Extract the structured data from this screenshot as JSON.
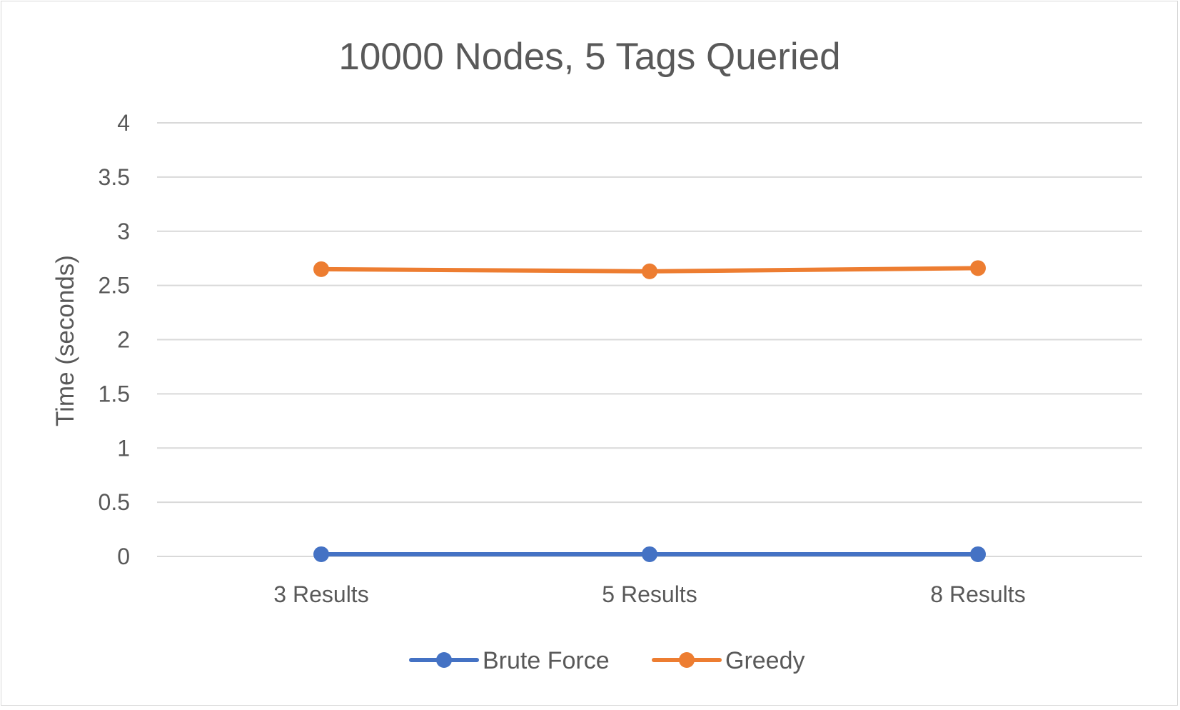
{
  "chart_data": {
    "type": "line",
    "title": "10000 Nodes, 5 Tags Queried",
    "xlabel": "",
    "ylabel": "Time (seconds)",
    "categories": [
      "3 Results",
      "5 Results",
      "8 Results"
    ],
    "ylim": [
      0,
      4
    ],
    "yticks": [
      "0",
      "0.5",
      "1",
      "1.5",
      "2",
      "2.5",
      "3",
      "3.5",
      "4"
    ],
    "ytick_values": [
      0,
      0.5,
      1,
      1.5,
      2,
      2.5,
      3,
      3.5,
      4
    ],
    "grid": true,
    "legend_position": "bottom",
    "series": [
      {
        "name": "Brute Force",
        "color": "#4472C4",
        "values": [
          0.02,
          0.02,
          0.02
        ]
      },
      {
        "name": "Greedy",
        "color": "#ED7D31",
        "values": [
          2.65,
          2.63,
          2.66
        ]
      }
    ]
  }
}
